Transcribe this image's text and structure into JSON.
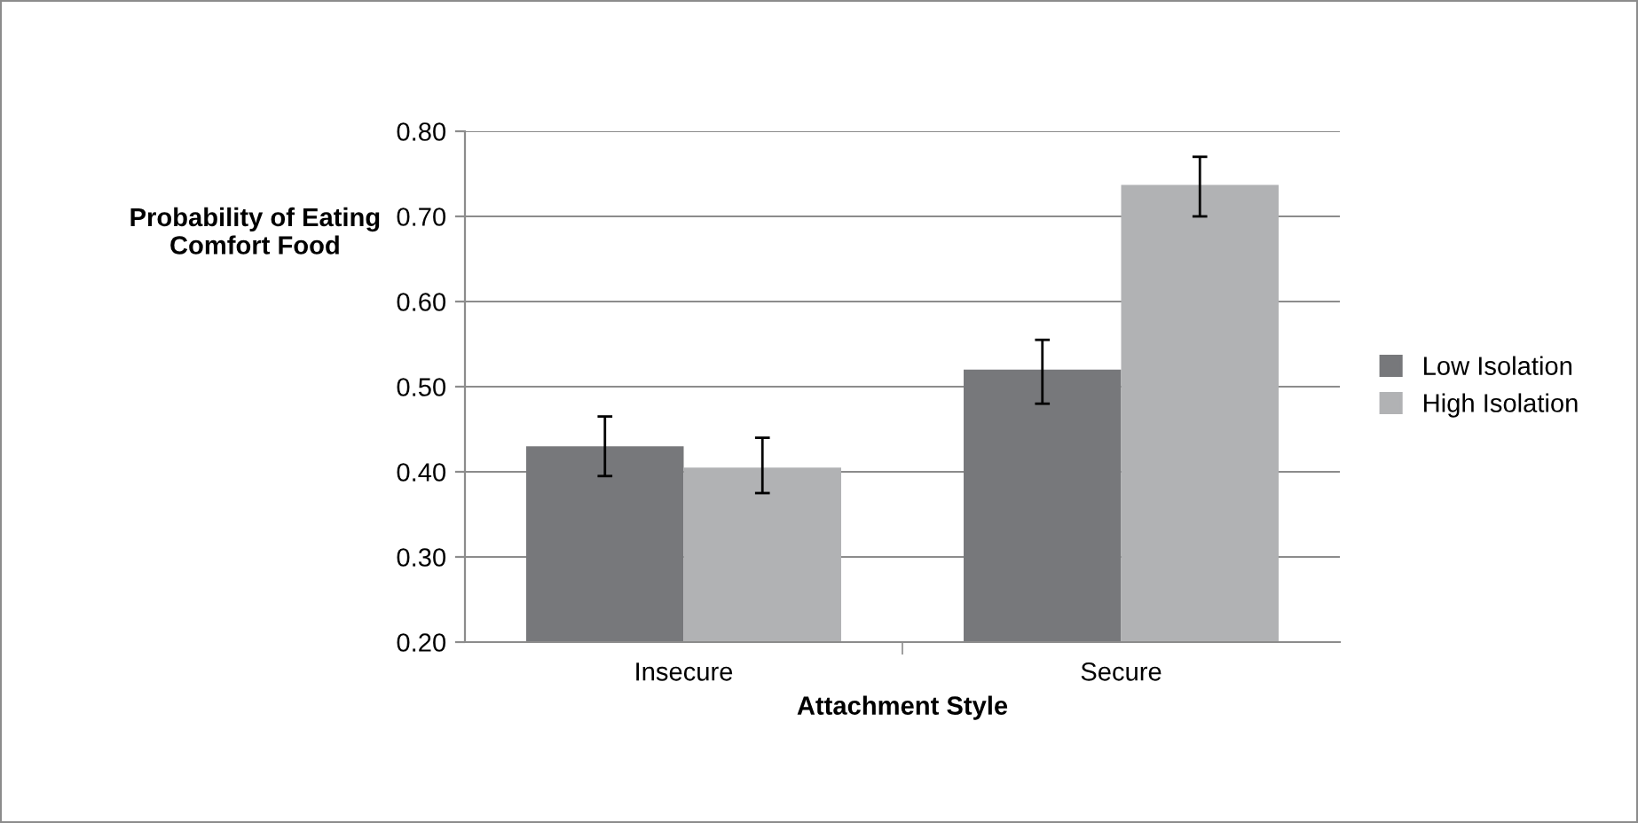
{
  "chart_data": {
    "type": "bar",
    "xlabel": "Attachment Style",
    "ylabel": "Probability of Eating\nComfort Food",
    "categories": [
      "Insecure",
      "Secure"
    ],
    "series": [
      {
        "name": "Low Isolation",
        "color": "#77787b",
        "values": [
          0.43,
          0.52
        ],
        "errors": [
          [
            0.395,
            0.465
          ],
          [
            0.48,
            0.555
          ]
        ]
      },
      {
        "name": "High Isolation",
        "color": "#b1b2b4",
        "values": [
          0.405,
          0.737
        ],
        "errors": [
          [
            0.375,
            0.44
          ],
          [
            0.7,
            0.77
          ]
        ]
      }
    ],
    "ylim": [
      0.2,
      0.8
    ],
    "yticks": [
      {
        "value": 0.2,
        "label": "0.20"
      },
      {
        "value": 0.3,
        "label": "0.30"
      },
      {
        "value": 0.4,
        "label": "0.40"
      },
      {
        "value": 0.5,
        "label": "0.50"
      },
      {
        "value": 0.6,
        "label": "0.60"
      },
      {
        "value": 0.7,
        "label": "0.70"
      },
      {
        "value": 0.8,
        "label": "0.80"
      }
    ],
    "grid": "y",
    "legend": "right"
  }
}
